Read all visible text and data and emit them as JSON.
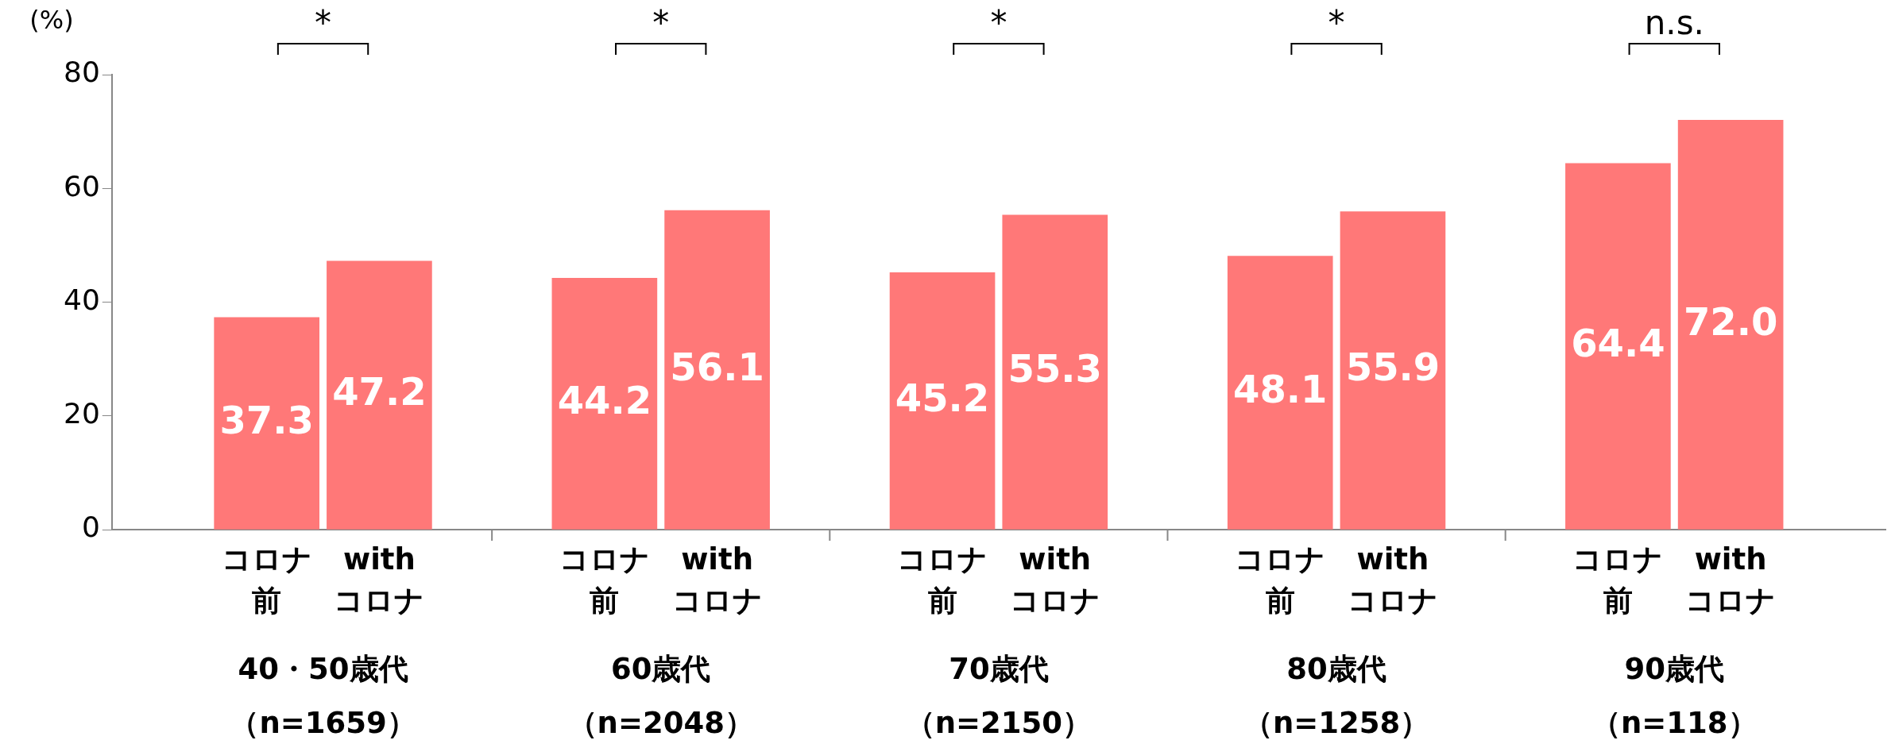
{
  "chart_data": {
    "type": "bar",
    "ylabel": "(%)",
    "categories": [
      "コロナ前",
      "withコロナ",
      "コロナ前",
      "withコロナ",
      "コロナ前",
      "withコロナ",
      "コロナ前",
      "withコロナ",
      "コロナ前",
      "withコロナ"
    ],
    "values": [
      37.3,
      47.2,
      44.2,
      56.1,
      45.2,
      55.3,
      48.1,
      55.9,
      64.4,
      72.0
    ],
    "value_labels": [
      "37.3",
      "47.2",
      "44.2",
      "56.1",
      "45.2",
      "55.3",
      "48.1",
      "55.9",
      "64.4",
      "72.0"
    ],
    "color": "#ff7878",
    "ylim": [
      0,
      80
    ],
    "yticks": [
      0,
      20,
      40,
      60,
      80
    ],
    "grid": false,
    "annotations": [
      "40・50歳代（n=1659）",
      "60歳代（n=2048）",
      "70歳代（n=2150）",
      "80歳代（n=1258）",
      "90歳代（n=118）",
      "*",
      "*",
      "*",
      "*",
      "n.s."
    ]
  }
}
